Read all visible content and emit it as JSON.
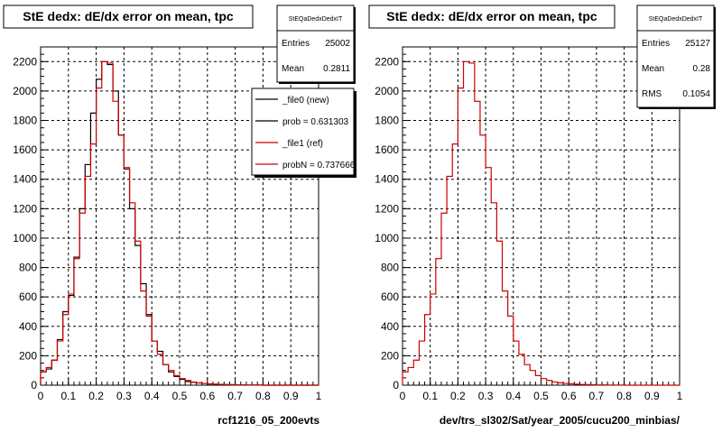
{
  "panels": [
    {
      "title": "StE dedx: dE/dx error on mean, tpc",
      "stats": {
        "name": "StEQaDedxDedxIT",
        "rows": [
          {
            "label": "Entries",
            "value": "25002"
          },
          {
            "label": "Mean",
            "value": "0.2811"
          }
        ]
      },
      "footer_label": "rcf1216_05_200evts",
      "legend": [
        {
          "label": "_file0 (new)",
          "color": "#000000"
        },
        {
          "label": "prob = 0.631303",
          "color": "#000000"
        },
        {
          "label": "_file1 (ref)",
          "color": "#cc0000"
        },
        {
          "label": "probN = 0.737666",
          "color": "#cc0000"
        }
      ]
    },
    {
      "title": "StE dedx: dE/dx error on mean, tpc",
      "stats": {
        "name": "StEQaDedxDedxIT",
        "rows": [
          {
            "label": "Entries",
            "value": "25127"
          },
          {
            "label": "Mean",
            "value": "0.28"
          },
          {
            "label": "RMS",
            "value": "0.1054"
          }
        ]
      },
      "footer_label": "dev/trs_sl302/Sat/year_2005/cucu200_minbias/",
      "legend": []
    }
  ],
  "chart_data": [
    {
      "type": "histogram",
      "title": "StE dedx: dE/dx error on mean, tpc",
      "xlabel": "rcf1216_05_200evts",
      "ylabel": "",
      "xlim": [
        0,
        1
      ],
      "ylim": [
        0,
        2300
      ],
      "x_ticks": [
        "0",
        "0.1",
        "0.2",
        "0.3",
        "0.4",
        "0.5",
        "0.6",
        "0.7",
        "0.8",
        "0.9",
        "1"
      ],
      "y_ticks": [
        "0",
        "200",
        "400",
        "600",
        "800",
        "1000",
        "1200",
        "1400",
        "1600",
        "1800",
        "2000",
        "2200"
      ],
      "grid": true,
      "legend_position": "top-right",
      "bin_width": 0.02,
      "series": [
        {
          "name": "_file0 (new)",
          "color": "#000000",
          "values": [
            90,
            110,
            170,
            310,
            500,
            610,
            870,
            1200,
            1500,
            1850,
            2080,
            2200,
            2180,
            2000,
            1700,
            1470,
            1200,
            950,
            690,
            480,
            300,
            230,
            140,
            90,
            60,
            40,
            25,
            20,
            15,
            12,
            8,
            6,
            5,
            4,
            3,
            2,
            2,
            1,
            1,
            1,
            0,
            0,
            0,
            0,
            0,
            0,
            0,
            0,
            0,
            0
          ]
        },
        {
          "name": "_file1 (ref)",
          "color": "#cc0000",
          "values": [
            90,
            120,
            170,
            300,
            480,
            620,
            860,
            1170,
            1420,
            1640,
            2020,
            2200,
            2190,
            1930,
            1700,
            1480,
            1240,
            980,
            640,
            470,
            300,
            210,
            140,
            100,
            65,
            45,
            32,
            22,
            16,
            12,
            9,
            7,
            5,
            4,
            3,
            2,
            2,
            1,
            1,
            1,
            0,
            0,
            0,
            0,
            0,
            0,
            0,
            0,
            0,
            0
          ]
        }
      ]
    },
    {
      "type": "histogram",
      "title": "StE dedx: dE/dx error on mean, tpc",
      "xlabel": "dev/trs_sl302/Sat/year_2005/cucu200_minbias/",
      "ylabel": "",
      "xlim": [
        0,
        1
      ],
      "ylim": [
        0,
        2300
      ],
      "x_ticks": [
        "0",
        "0.1",
        "0.2",
        "0.3",
        "0.4",
        "0.5",
        "0.6",
        "0.7",
        "0.8",
        "0.9",
        "1"
      ],
      "y_ticks": [
        "0",
        "200",
        "400",
        "600",
        "800",
        "1000",
        "1200",
        "1400",
        "1600",
        "1800",
        "2000",
        "2200"
      ],
      "grid": true,
      "bin_width": 0.02,
      "series": [
        {
          "name": "",
          "color": "#cc0000",
          "values": [
            90,
            120,
            170,
            300,
            480,
            620,
            860,
            1170,
            1420,
            1640,
            2020,
            2200,
            2190,
            1930,
            1700,
            1480,
            1240,
            980,
            640,
            470,
            300,
            210,
            140,
            100,
            65,
            45,
            32,
            22,
            16,
            12,
            9,
            7,
            5,
            4,
            3,
            2,
            2,
            1,
            1,
            1,
            0,
            0,
            0,
            0,
            0,
            0,
            0,
            0,
            0,
            0
          ]
        }
      ]
    }
  ]
}
